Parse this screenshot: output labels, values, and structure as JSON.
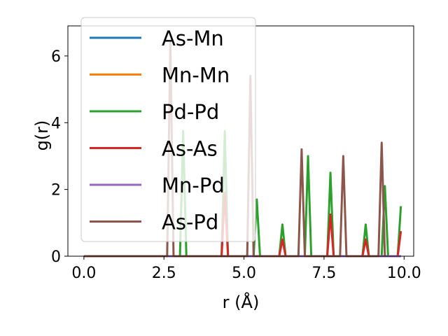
{
  "chart_data": {
    "type": "line",
    "xlabel": "r (Å)",
    "ylabel": "g(r)",
    "xlim": [
      -0.5,
      10.3
    ],
    "ylim": [
      0,
      6.9
    ],
    "xticks": [
      0.0,
      2.5,
      5.0,
      7.5,
      10.0
    ],
    "xtick_labels": [
      "0.0",
      "2.5",
      "5.0",
      "7.5",
      "10.0"
    ],
    "yticks": [
      0,
      2,
      4,
      6
    ],
    "ytick_labels": [
      "0",
      "2",
      "4",
      "6"
    ],
    "grid": false,
    "legend_position": "upper-left",
    "series": [
      {
        "name": "As-Mn",
        "color": "#1f77b4",
        "points": [
          [
            0,
            0
          ],
          [
            9.9,
            0
          ]
        ]
      },
      {
        "name": "Mn-Mn",
        "color": "#ff7f0e",
        "points": [
          [
            0,
            0
          ],
          [
            9.9,
            0
          ]
        ]
      },
      {
        "name": "Pd-Pd",
        "color": "#2ca02c",
        "points": [
          [
            0,
            0
          ],
          [
            3.0,
            0
          ],
          [
            3.1,
            3.75
          ],
          [
            3.2,
            0
          ],
          [
            4.3,
            0
          ],
          [
            4.4,
            3.75
          ],
          [
            4.5,
            0
          ],
          [
            5.3,
            0
          ],
          [
            5.4,
            1.7
          ],
          [
            5.5,
            0
          ],
          [
            6.1,
            0
          ],
          [
            6.2,
            0.95
          ],
          [
            6.3,
            0
          ],
          [
            6.9,
            0
          ],
          [
            7.0,
            3.0
          ],
          [
            7.1,
            0
          ],
          [
            7.6,
            0
          ],
          [
            7.7,
            2.5
          ],
          [
            7.8,
            0
          ],
          [
            8.7,
            0
          ],
          [
            8.8,
            0.95
          ],
          [
            8.9,
            0
          ],
          [
            9.3,
            0
          ],
          [
            9.4,
            2.1
          ],
          [
            9.5,
            0
          ],
          [
            9.8,
            0
          ],
          [
            9.9,
            1.5
          ]
        ]
      },
      {
        "name": "As-As",
        "color": "#d62728",
        "points": [
          [
            0,
            0
          ],
          [
            4.3,
            0
          ],
          [
            4.4,
            1.9
          ],
          [
            4.5,
            0
          ],
          [
            6.1,
            0
          ],
          [
            6.2,
            0.5
          ],
          [
            6.3,
            0
          ],
          [
            7.6,
            0
          ],
          [
            7.7,
            1.25
          ],
          [
            7.8,
            0
          ],
          [
            8.7,
            0
          ],
          [
            8.8,
            0.5
          ],
          [
            8.9,
            0
          ],
          [
            9.8,
            0
          ],
          [
            9.9,
            0.75
          ]
        ]
      },
      {
        "name": "Mn-Pd",
        "color": "#9467bd",
        "points": [
          [
            0,
            0
          ],
          [
            9.9,
            0
          ]
        ]
      },
      {
        "name": "As-Pd",
        "color": "#8c564b",
        "points": [
          [
            0,
            0
          ],
          [
            2.6,
            0
          ],
          [
            2.7,
            6.4
          ],
          [
            2.8,
            0
          ],
          [
            5.1,
            0
          ],
          [
            5.2,
            5.4
          ],
          [
            5.3,
            0
          ],
          [
            6.7,
            0
          ],
          [
            6.8,
            3.2
          ],
          [
            6.9,
            0
          ],
          [
            8.0,
            0
          ],
          [
            8.1,
            3.0
          ],
          [
            8.2,
            0
          ],
          [
            9.2,
            0
          ],
          [
            9.3,
            3.4
          ],
          [
            9.4,
            0
          ]
        ]
      }
    ]
  }
}
